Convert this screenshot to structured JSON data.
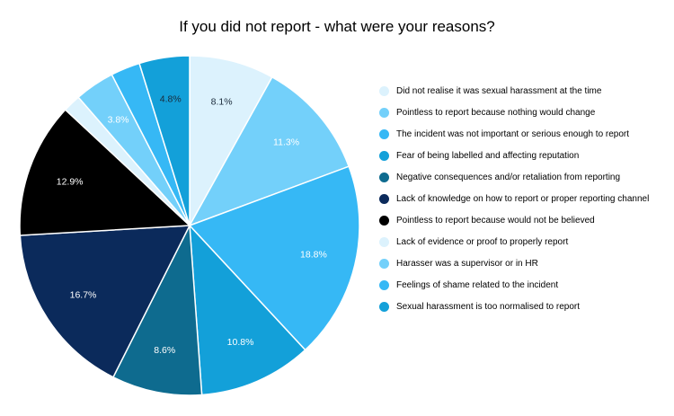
{
  "chart_data": {
    "type": "pie",
    "title": "If you did not report - what were your reasons?",
    "legend_position": "right",
    "slices": [
      {
        "label": "Did not realise it was sexual harassment at the time",
        "value": 8.1,
        "display": "8.1%",
        "color": "#dcf2fd",
        "text_color": "#1a2a3a"
      },
      {
        "label": "Pointless to report because nothing would change",
        "value": 11.3,
        "display": "11.3%",
        "color": "#73d0fa",
        "text_color": "#ffffff"
      },
      {
        "label": "The incident was not important or serious enough to report",
        "value": 18.8,
        "display": "18.8%",
        "color": "#36b8f5",
        "text_color": "#ffffff"
      },
      {
        "label": "Fear of being labelled and affecting reputation",
        "value": 10.8,
        "display": "10.8%",
        "color": "#13a0d9",
        "text_color": "#ffffff"
      },
      {
        "label": "Negative consequences and/or retaliation from reporting",
        "value": 8.6,
        "display": "8.6%",
        "color": "#0e6b8f",
        "text_color": "#ffffff"
      },
      {
        "label": "Lack of knowledge on how to report or proper reporting channel",
        "value": 16.7,
        "display": "16.7%",
        "color": "#0b2a5b",
        "text_color": "#ffffff"
      },
      {
        "label": "Pointless to report because would not be believed",
        "value": 12.9,
        "display": "12.9%",
        "color": "#000000",
        "text_color": "#ffffff"
      },
      {
        "label": "Lack of evidence or proof to properly report",
        "value": 1.7,
        "display": "",
        "color": "#dcf2fd",
        "text_color": "#1a2a3a"
      },
      {
        "label": "Harasser was a supervisor or in HR",
        "value": 3.8,
        "display": "3.8%",
        "color": "#73d0fa",
        "text_color": "#ffffff"
      },
      {
        "label": "Feelings of shame related to the incident",
        "value": 2.8,
        "display": "",
        "color": "#36b8f5",
        "text_color": "#ffffff"
      },
      {
        "label": "Sexual harassment is too normalised to report",
        "value": 4.8,
        "display": "4.8%",
        "color": "#13a0d9",
        "text_color": "#1a2a3a"
      }
    ]
  }
}
